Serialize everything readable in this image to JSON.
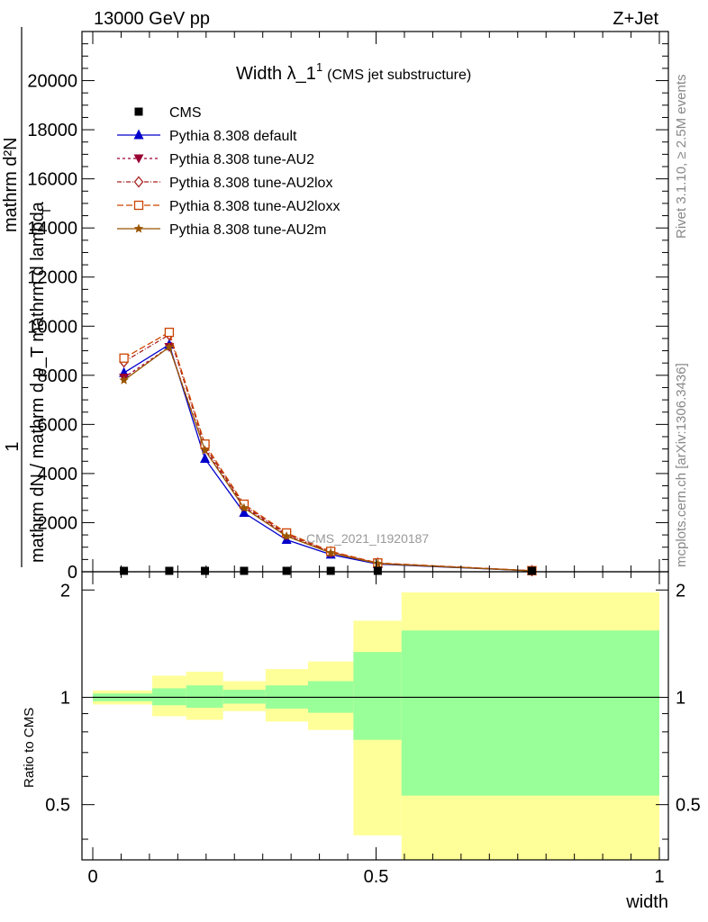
{
  "header": {
    "energy_label": "13000 GeV pp",
    "process_label": "Z+Jet"
  },
  "side_labels": {
    "rivet": "Rivet 3.1.10, ≥ 2.5M events",
    "mcplots": "mcplots.cern.ch [arXiv:1306.3436]"
  },
  "chart_data": [
    {
      "type": "line",
      "title": "Width λ_1",
      "title_superscript": "1",
      "title_note": "(CMS jet substructure)",
      "watermark": "CMS_2021_I1920187",
      "ylabel_numerator": "1",
      "ylabel_denominator": "mathrm dN / mathrm d p_T mathrm d lambda",
      "ylabel_top": "mathrm d²N",
      "ylabel_subscript": "T",
      "xlim": [
        0,
        1
      ],
      "ylim": [
        0,
        22000
      ],
      "yticks": [
        0,
        2000,
        4000,
        6000,
        8000,
        10000,
        12000,
        14000,
        16000,
        18000,
        20000
      ],
      "ytick_labels": [
        "0",
        "2000",
        "4000",
        "6000",
        "8000",
        "10000",
        "12000",
        "14000",
        "16000",
        "18000",
        "20000"
      ],
      "legend_position": "top-left",
      "x": [
        0.055,
        0.135,
        0.198,
        0.267,
        0.342,
        0.42,
        0.503,
        0.775
      ],
      "data_series": {
        "name": "CMS",
        "x": [
          0.055,
          0.135,
          0.198,
          0.267,
          0.342,
          0.42,
          0.503,
          0.775
        ],
        "values": [
          0,
          0,
          0,
          0,
          0,
          0,
          0,
          0
        ]
      },
      "series": [
        {
          "name": "Pythia 8.308 default",
          "color": "#0000cc",
          "marker": "triangle-up",
          "dash": "solid",
          "values": [
            8100,
            9250,
            4600,
            2400,
            1300,
            700,
            310,
            35
          ]
        },
        {
          "name": "Pythia 8.308 tune-AU2",
          "color": "#990033",
          "marker": "triangle-down",
          "dash": "3,3",
          "values": [
            7900,
            9150,
            5000,
            2650,
            1480,
            790,
            340,
            40
          ]
        },
        {
          "name": "Pythia 8.308 tune-AU2lox",
          "color": "#aa2222",
          "marker": "diamond-open",
          "dash": "5,2,1,2",
          "values": [
            8550,
            9650,
            5100,
            2700,
            1530,
            810,
            350,
            42
          ]
        },
        {
          "name": "Pythia 8.308 tune-AU2loxx",
          "color": "#cc4400",
          "marker": "square-open",
          "dash": "7,3",
          "values": [
            8700,
            9750,
            5200,
            2750,
            1580,
            830,
            360,
            45
          ]
        },
        {
          "name": "Pythia 8.308 tune-AU2m",
          "color": "#995500",
          "marker": "star",
          "dash": "solid",
          "values": [
            7800,
            9150,
            4950,
            2600,
            1450,
            770,
            330,
            38
          ]
        }
      ]
    },
    {
      "type": "area",
      "ylabel": "Ratio to CMS",
      "xlabel": "width",
      "xlim": [
        0,
        1
      ],
      "ylim": [
        0.35,
        2.25
      ],
      "log_scale_y": true,
      "yticks": [
        0.5,
        1,
        2
      ],
      "ytick_labels": [
        "0.5",
        "1",
        "2"
      ],
      "xticks": [
        0,
        0.5,
        1
      ],
      "xtick_labels": [
        "0",
        "0.5",
        "1"
      ],
      "reference_line": 1,
      "bin_edges": [
        0,
        0.105,
        0.165,
        0.23,
        0.305,
        0.38,
        0.46,
        0.545,
        1.0
      ],
      "stat_band": [
        [
          0.975,
          1.025
        ],
        [
          0.95,
          1.06
        ],
        [
          0.935,
          1.08
        ],
        [
          0.96,
          1.05
        ],
        [
          0.93,
          1.08
        ],
        [
          0.905,
          1.11
        ],
        [
          0.76,
          1.34
        ],
        [
          0.53,
          1.54
        ]
      ],
      "total_band": [
        [
          0.955,
          1.045
        ],
        [
          0.885,
          1.15
        ],
        [
          0.865,
          1.18
        ],
        [
          0.915,
          1.11
        ],
        [
          0.855,
          1.2
        ],
        [
          0.81,
          1.26
        ],
        [
          0.41,
          1.64
        ],
        [
          0.35,
          1.97
        ]
      ],
      "stat_color": "#99ff99",
      "total_color": "#ffff99"
    }
  ]
}
